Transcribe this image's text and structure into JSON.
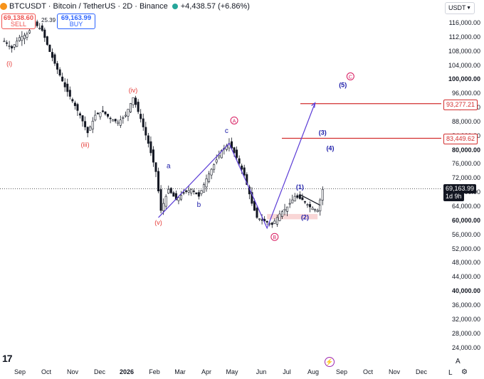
{
  "header": {
    "symbol_text": "BTCUSDT · Bitcoin / TetherUS · 2D · Binance",
    "change_text": "+4,438.57 (+6.86%)"
  },
  "trade": {
    "sell_price": "69,138.60",
    "sell_label": "SELL",
    "spread": "25.39",
    "buy_price": "69,163.99",
    "buy_label": "BUY"
  },
  "currency_selector": "USDT",
  "price_tags": {
    "target_high": "93,277.21",
    "target_low": "83,449.62",
    "current": "69,163.99",
    "countdown": "1d 9h"
  },
  "corner": {
    "auto": "A",
    "log": "L"
  },
  "chart_data": {
    "type": "candlestick",
    "title": "BTCUSDT · Bitcoin / TetherUS · 2D · Binance",
    "ylim": [
      22000,
      118000
    ],
    "y_ticks": [
      116000,
      112000,
      108000,
      104000,
      100000,
      96000,
      92000,
      88000,
      84000,
      80000,
      76000,
      72000,
      68000,
      64000,
      60000,
      56000,
      52000,
      48000,
      44000,
      40000,
      36000,
      32000,
      28000,
      24000
    ],
    "y_tick_labels": [
      "116,000.00",
      "112,000.00",
      "108,000.00",
      "104,000.00",
      "100,000.00",
      "96,000.00",
      "92,000.00",
      "88,000.00",
      "84,000.00",
      "80,000.00",
      "76,000.00",
      "72,000.00",
      "68,000.00",
      "64,000.00",
      "60,000.00",
      "56,000.00",
      "52,000.00",
      "48,000.00",
      "44,000.00",
      "40,000.00",
      "36,000.00",
      "32,000.00",
      "28,000.00",
      "24,000.00"
    ],
    "x_labels": [
      "Sep",
      "Oct",
      "Nov",
      "Dec",
      "2026",
      "Feb",
      "Mar",
      "Apr",
      "May",
      "Jun",
      "Jul",
      "Aug",
      "Sep",
      "Oct",
      "Nov",
      "Dec"
    ],
    "price_path": [
      [
        0,
        111000
      ],
      [
        3,
        109000
      ],
      [
        6,
        112000
      ],
      [
        9,
        113000
      ],
      [
        12,
        116000
      ],
      [
        15,
        114000
      ],
      [
        18,
        108000
      ],
      [
        21,
        103000
      ],
      [
        24,
        98000
      ],
      [
        27,
        94000
      ],
      [
        30,
        90000
      ],
      [
        33,
        85000
      ],
      [
        36,
        90000
      ],
      [
        39,
        91000
      ],
      [
        42,
        89000
      ],
      [
        45,
        88000
      ],
      [
        48,
        90000
      ],
      [
        51,
        95000
      ],
      [
        52,
        93000
      ],
      [
        54,
        89000
      ],
      [
        57,
        82000
      ],
      [
        60,
        74000
      ],
      [
        62,
        63000
      ],
      [
        65,
        69000
      ],
      [
        68,
        66000
      ],
      [
        71,
        68000
      ],
      [
        74,
        69000
      ],
      [
        77,
        67000
      ],
      [
        80,
        72000
      ],
      [
        83,
        76000
      ],
      [
        86,
        80000
      ],
      [
        89,
        82000
      ],
      [
        92,
        78000
      ],
      [
        95,
        73000
      ],
      [
        98,
        65000
      ],
      [
        100,
        61000
      ],
      [
        103,
        60000
      ],
      [
        106,
        59000
      ],
      [
        109,
        62000
      ],
      [
        112,
        64000
      ],
      [
        115,
        67000
      ],
      [
        118,
        66000
      ],
      [
        121,
        64000
      ],
      [
        124,
        63000
      ],
      [
        126,
        69000
      ]
    ],
    "wave_labels": [
      {
        "text": "(i)",
        "x": 2,
        "y": 104000,
        "color": "#e53935"
      },
      {
        "text": "(iii)",
        "x": 32,
        "y": 81000,
        "color": "#e53935"
      },
      {
        "text": "(iv)",
        "x": 51,
        "y": 96500,
        "color": "#e53935"
      },
      {
        "text": "(v)",
        "x": 61,
        "y": 59000,
        "color": "#e53935"
      },
      {
        "text": "a",
        "x": 65,
        "y": 75000,
        "color": "#1a1aa8"
      },
      {
        "text": "b",
        "x": 77,
        "y": 64000,
        "color": "#1a1aa8"
      },
      {
        "text": "c",
        "x": 88,
        "y": 85000,
        "color": "#1a1aa8"
      },
      {
        "text": "(1)",
        "x": 117,
        "y": 69000,
        "color": "#1a1aa8"
      },
      {
        "text": "(2)",
        "x": 119,
        "y": 60500,
        "color": "#1a1aa8"
      },
      {
        "text": "(3)",
        "x": 126,
        "y": 84500,
        "color": "#1a1aa8"
      },
      {
        "text": "(4)",
        "x": 129,
        "y": 80000,
        "color": "#1a1aa8"
      },
      {
        "text": "(5)",
        "x": 134,
        "y": 98000,
        "color": "#1a1aa8"
      }
    ],
    "circle_labels": [
      {
        "text": "A",
        "x": 91,
        "y": 88500
      },
      {
        "text": "B",
        "x": 107,
        "y": 55500
      },
      {
        "text": "C",
        "x": 137,
        "y": 101000
      }
    ],
    "horizontal_levels": [
      93277.21,
      83449.62
    ],
    "current_price": 69163.99,
    "projection_path": [
      [
        61,
        61000
      ],
      [
        89,
        82000
      ],
      [
        104,
        58000
      ],
      [
        123,
        93500
      ]
    ]
  }
}
